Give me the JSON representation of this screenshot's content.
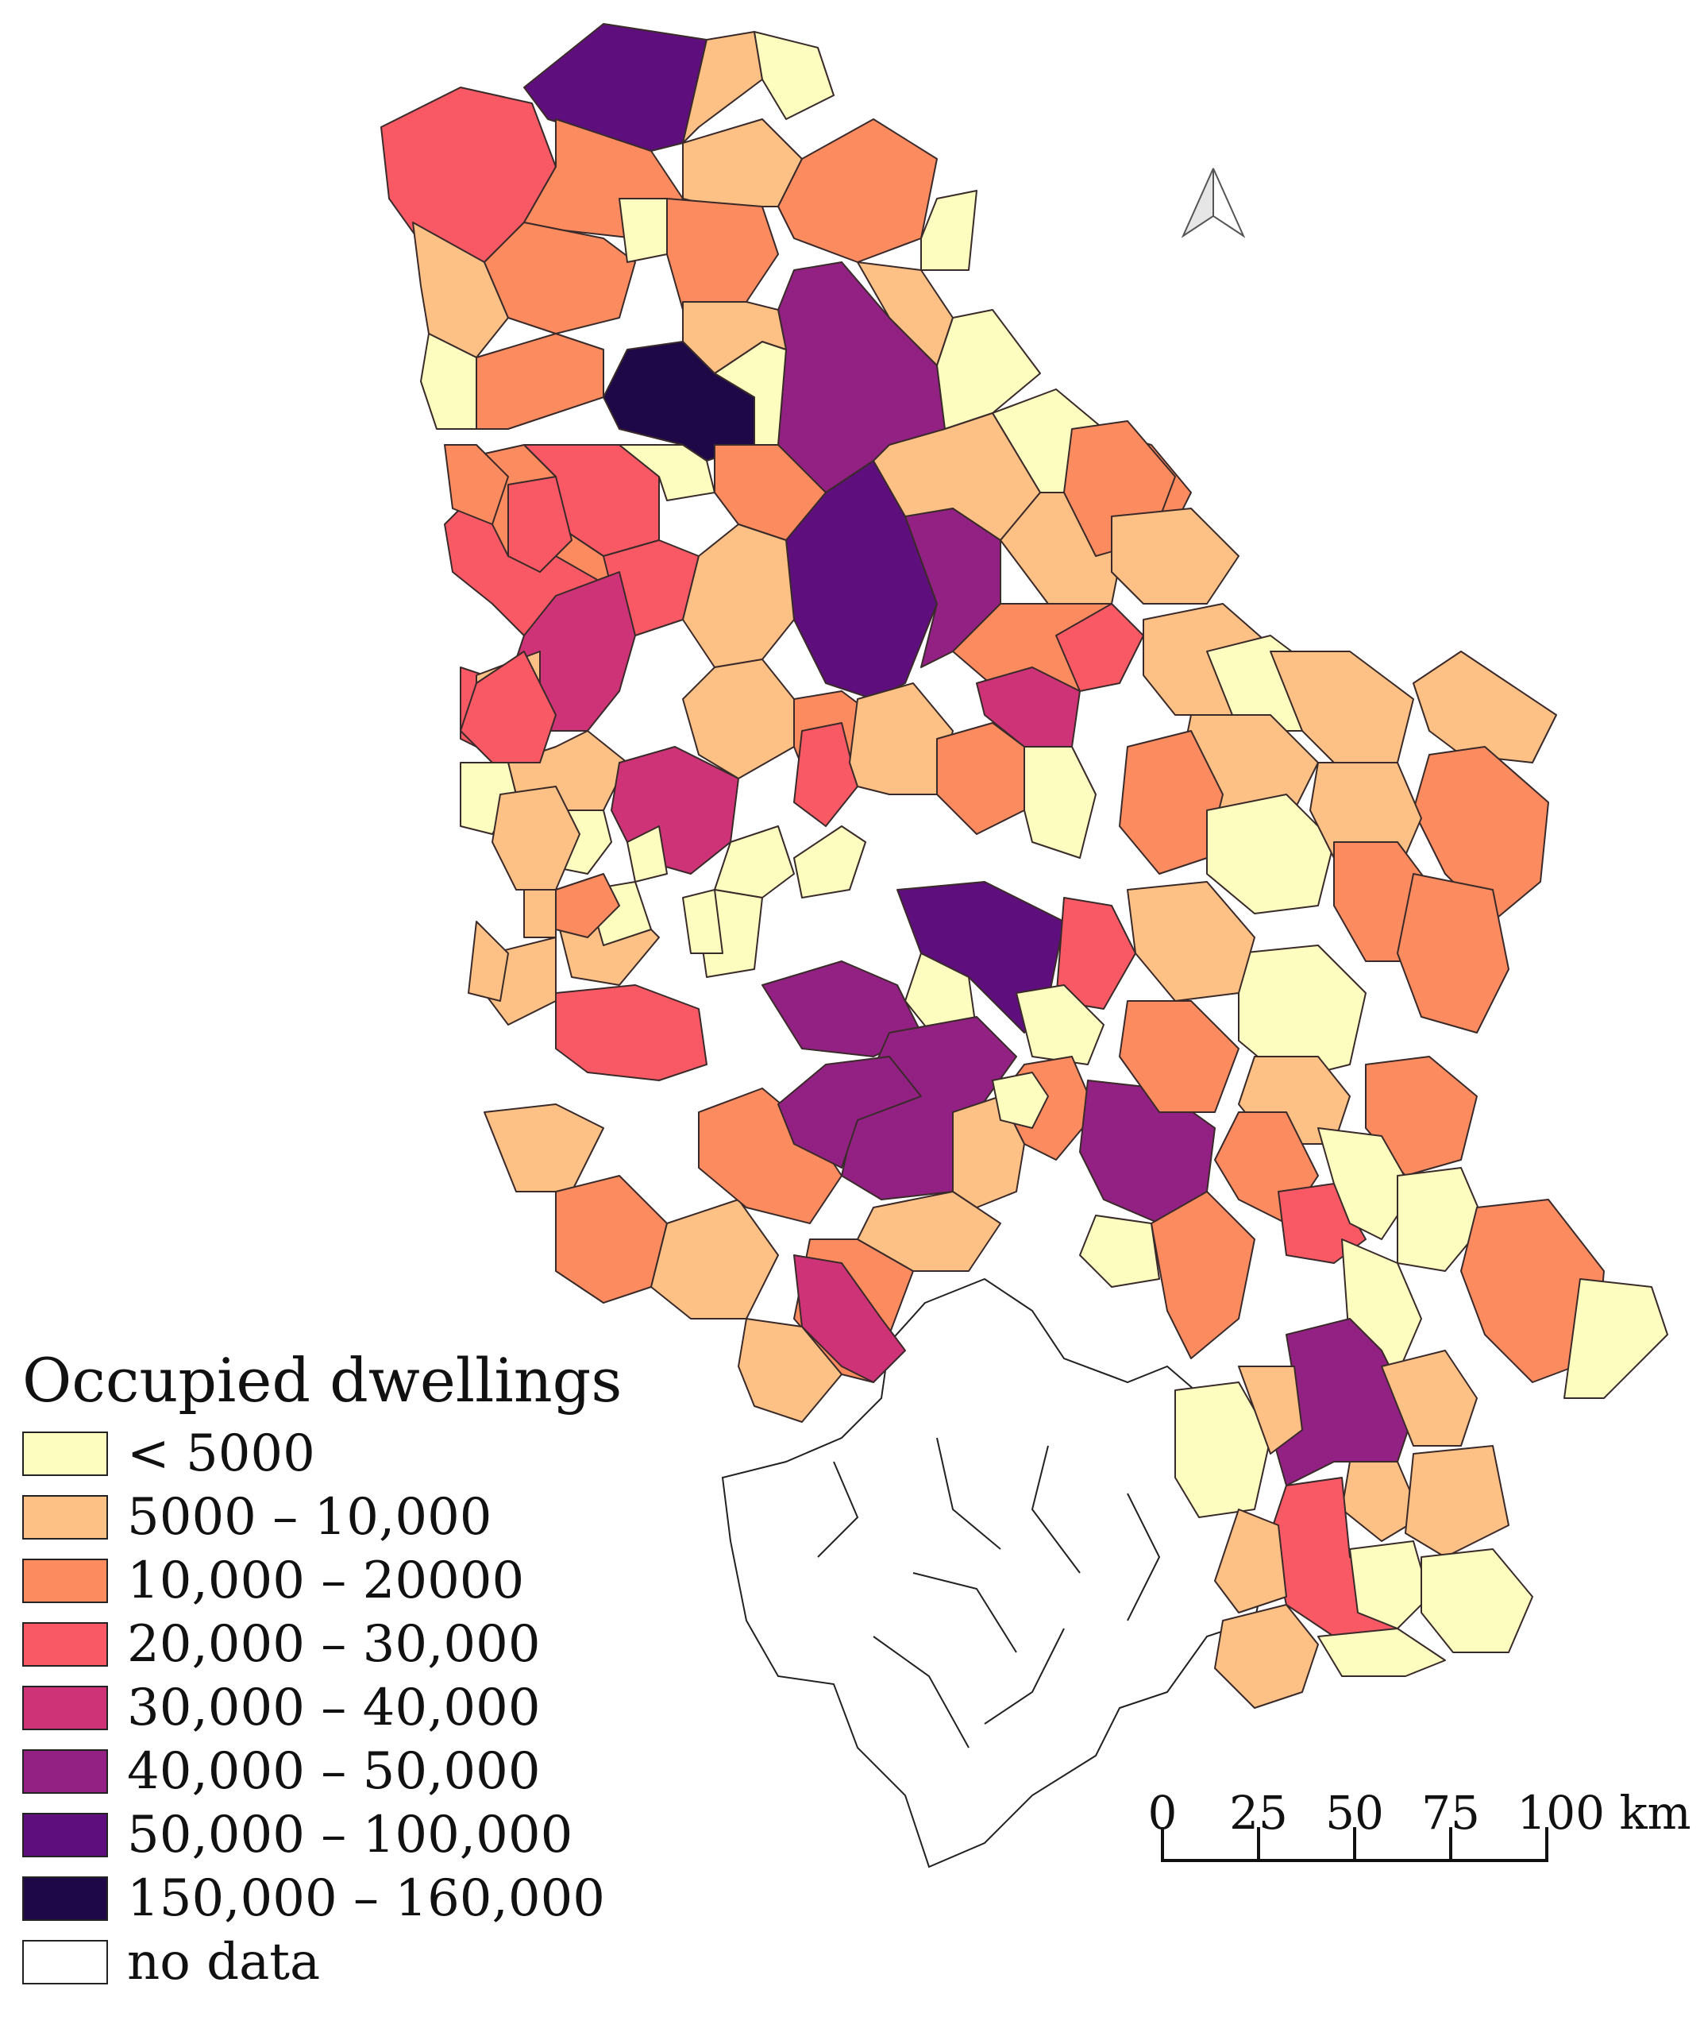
{
  "legend": {
    "title": "Occupied dwellings",
    "items": [
      {
        "label": "< 5000",
        "color": "#fdfdbf"
      },
      {
        "label": "5000 – 10,000",
        "color": "#fdc085"
      },
      {
        "label": "10,000 – 20000",
        "color": "#fc8b5f"
      },
      {
        "label": "20,000 – 30,000",
        "color": "#f85965"
      },
      {
        "label": "30,000 – 40,000",
        "color": "#cf3377"
      },
      {
        "label": "40,000 – 50,000",
        "color": "#922183"
      },
      {
        "label": "50,000 – 100,000",
        "color": "#5e0e7d"
      },
      {
        "label": "150,000 – 160,000",
        "color": "#1e0848"
      },
      {
        "label": "no data",
        "color": "#ffffff"
      }
    ]
  },
  "scale_bar": {
    "ticks": [
      "0",
      "25",
      "50",
      "75",
      "100 km"
    ]
  },
  "north_arrow": {
    "icon": "north-arrow-icon"
  }
}
